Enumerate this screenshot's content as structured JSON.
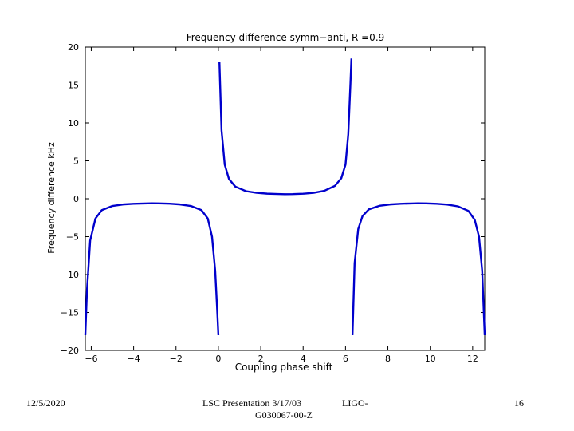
{
  "chart_data": {
    "type": "line",
    "title": "Frequency difference symm−anti, R =0.9",
    "xlabel": "Coupling phase shift",
    "ylabel": "Frequency difference kHz",
    "xlim": [
      -6.28,
      12.57
    ],
    "ylim": [
      -20,
      20
    ],
    "xticks": [
      "−6",
      "−4",
      "−2",
      "0",
      "2",
      "4",
      "6",
      "8",
      "10",
      "12"
    ],
    "yticks": [
      "20",
      "15",
      "10",
      "5",
      "0",
      "−5",
      "−10",
      "−15",
      "−20"
    ],
    "grid": false,
    "series": [
      {
        "color": "#0000cc",
        "x": [
          -6.28,
          -6.2,
          -6.05,
          -5.8,
          -5.5,
          -5.0,
          -4.5,
          -4.0,
          -3.5,
          -3.14,
          -2.8,
          -2.3,
          -1.8,
          -1.3,
          -0.8,
          -0.5,
          -0.3,
          -0.15,
          -0.05,
          0.0,
          0.05,
          0.15,
          0.3,
          0.5,
          0.8,
          1.3,
          1.8,
          2.3,
          2.8,
          3.14,
          3.5,
          4.0,
          4.5,
          5.0,
          5.5,
          5.8,
          6.0,
          6.13,
          6.23,
          6.28,
          6.33,
          6.43,
          6.6,
          6.8,
          7.1,
          7.6,
          8.1,
          8.6,
          9.1,
          9.42,
          9.8,
          10.3,
          10.8,
          11.3,
          11.8,
          12.1,
          12.3,
          12.45,
          12.57
        ],
        "y": [
          -18.0,
          -12.0,
          -5.5,
          -2.6,
          -1.5,
          -0.95,
          -0.75,
          -0.66,
          -0.62,
          -0.6,
          -0.61,
          -0.65,
          -0.75,
          -0.95,
          -1.5,
          -2.6,
          -5.0,
          -9.5,
          -15.0,
          -18.0,
          18.0,
          9.0,
          4.5,
          2.6,
          1.6,
          1.0,
          0.78,
          0.67,
          0.62,
          0.6,
          0.61,
          0.66,
          0.78,
          1.05,
          1.7,
          2.7,
          4.5,
          8.5,
          15.0,
          18.5,
          -18.0,
          -8.5,
          -4.0,
          -2.3,
          -1.4,
          -0.93,
          -0.75,
          -0.66,
          -0.62,
          -0.6,
          -0.61,
          -0.66,
          -0.77,
          -1.0,
          -1.6,
          -2.8,
          -5.0,
          -9.5,
          -18.0
        ]
      }
    ]
  },
  "footer": {
    "date": "12/5/2020",
    "presentation_line1": "LSC Presentation 3/17/03",
    "presentation_ligo": "LIGO-",
    "presentation_line2": "G030067-00-Z",
    "page": "16"
  }
}
